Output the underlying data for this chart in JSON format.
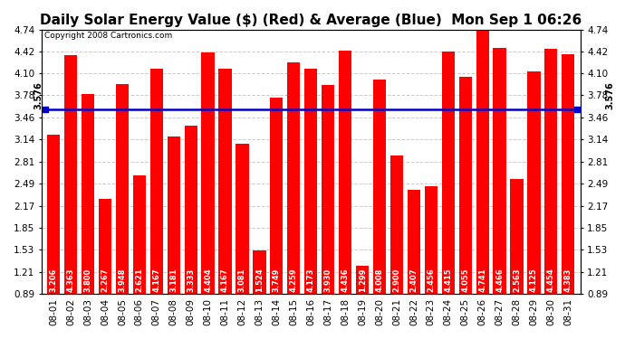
{
  "title": "Daily Solar Energy Value ($) (Red) & Average (Blue)  Mon Sep 1 06:26",
  "copyright": "Copyright 2008 Cartronics.com",
  "average": 3.576,
  "bar_color": "#ff0000",
  "average_line_color": "#0000cc",
  "fig_bg_color": "#ffffff",
  "plot_bg_color": "#ffffff",
  "ylim": [
    0.89,
    4.74
  ],
  "yticks": [
    0.89,
    1.21,
    1.53,
    1.85,
    2.17,
    2.49,
    2.81,
    3.14,
    3.46,
    3.78,
    4.1,
    4.42,
    4.74
  ],
  "categories": [
    "08-01",
    "08-02",
    "08-03",
    "08-04",
    "08-05",
    "08-06",
    "08-07",
    "08-08",
    "08-09",
    "08-10",
    "08-11",
    "08-12",
    "08-13",
    "08-14",
    "08-15",
    "08-16",
    "08-17",
    "08-18",
    "08-19",
    "08-20",
    "08-21",
    "08-22",
    "08-23",
    "08-24",
    "08-25",
    "08-26",
    "08-27",
    "08-28",
    "08-29",
    "08-30",
    "08-31"
  ],
  "values": [
    3.206,
    4.363,
    3.8,
    2.267,
    3.948,
    2.621,
    4.167,
    3.181,
    3.333,
    4.404,
    4.167,
    3.081,
    1.524,
    3.749,
    4.259,
    4.173,
    3.93,
    4.436,
    1.299,
    4.008,
    2.9,
    2.407,
    2.456,
    4.415,
    4.055,
    4.741,
    4.466,
    2.563,
    4.125,
    4.454,
    4.383
  ],
  "grid_color": "#cccccc",
  "grid_style": "--",
  "title_fontsize": 11,
  "tick_fontsize": 7.5,
  "bar_value_fontsize": 6,
  "copyright_fontsize": 6.5,
  "avg_label_fontsize": 7
}
